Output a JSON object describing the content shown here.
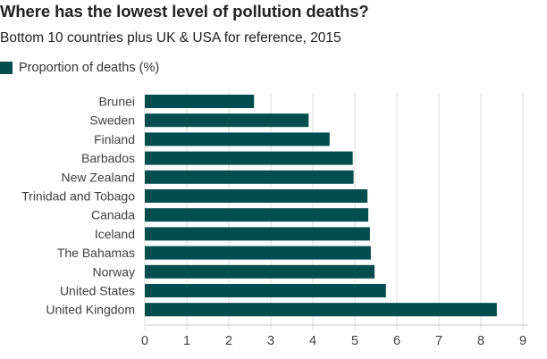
{
  "chart_data": {
    "type": "bar",
    "orientation": "horizontal",
    "title": "Where has the lowest level of pollution deaths?",
    "subtitle": "Bottom 10 countries plus UK & USA for reference, 2015",
    "legend": {
      "position": "top-left",
      "entries": [
        "Proportion of deaths (%)"
      ]
    },
    "categories": [
      "Brunei",
      "Sweden",
      "Finland",
      "Barbados",
      "New Zealand",
      "Trinidad and Tobago",
      "Canada",
      "Iceland",
      "The Bahamas",
      "Norway",
      "United States",
      "United Kingdom"
    ],
    "series": [
      {
        "name": "Proportion of deaths (%)",
        "values": [
          2.6,
          3.9,
          4.4,
          4.95,
          4.97,
          5.3,
          5.32,
          5.36,
          5.38,
          5.47,
          5.74,
          8.38
        ]
      }
    ],
    "xlabel": "",
    "ylabel": "",
    "xlim": [
      0,
      9
    ],
    "xticks": [
      0,
      1,
      2,
      3,
      4,
      5,
      6,
      7,
      8,
      9
    ],
    "grid": true,
    "bar_color": "#024d4e",
    "grid_color": "#dddddd"
  }
}
